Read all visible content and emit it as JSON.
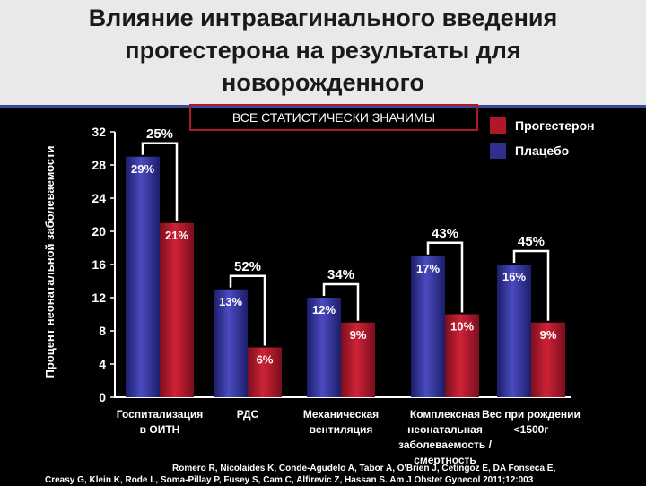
{
  "title": {
    "line1": "Влияние интравагинального введения",
    "line2": "прогестерона на результаты для",
    "line3": "новорожденного"
  },
  "note": "ВСЕ СТАТИСТИЧЕСКИ ЗНАЧИМЫ",
  "citation": {
    "line1": "Romero R, Nicolaides K, Conde-Agudelo A, Tabor A, O'Brien J, Cetingoz E, DA Fonseca E,",
    "line2": "Creasy G, Klein K, Rode L, Soma-Pillay P, Fusey S, Cam C, Alfirevic Z, Hassan S. Am J Obstet Gynecol 2011;12:003"
  },
  "colors": {
    "progesterone": "#b0172a",
    "placebo": "#2e2f8f"
  },
  "chart_data": {
    "type": "bar",
    "ylabel": "Процент неонатальной заболеваемости",
    "ylim": [
      0,
      32
    ],
    "yticks": [
      "0",
      "4",
      "8",
      "12",
      "16",
      "20",
      "24",
      "28",
      "32"
    ],
    "categories": [
      [
        "Госпитализация",
        "в ОИТН"
      ],
      [
        "РДС"
      ],
      [
        "Механическая",
        "вентиляция"
      ],
      [
        "Комплексная",
        "неонатальная",
        "заболеваемость /",
        "смертность"
      ],
      [
        "Вес при рождении",
        "<1500г"
      ]
    ],
    "series": [
      {
        "name": "Плацебо",
        "values": [
          29,
          13,
          12,
          17,
          16
        ],
        "labels": [
          "29%",
          "13%",
          "12%",
          "17%",
          "16%"
        ]
      },
      {
        "name": "Прогестерон",
        "values": [
          21,
          6,
          9,
          10,
          9
        ],
        "labels": [
          "21%",
          "6%",
          "9%",
          "10%",
          "9%"
        ]
      }
    ],
    "reductions": [
      "25%",
      "52%",
      "34%",
      "43%",
      "45%"
    ],
    "legend": [
      {
        "name": "Прогестерон",
        "color": "#b0172a"
      },
      {
        "name": "Плацебо",
        "color": "#2e2f8f"
      }
    ]
  }
}
